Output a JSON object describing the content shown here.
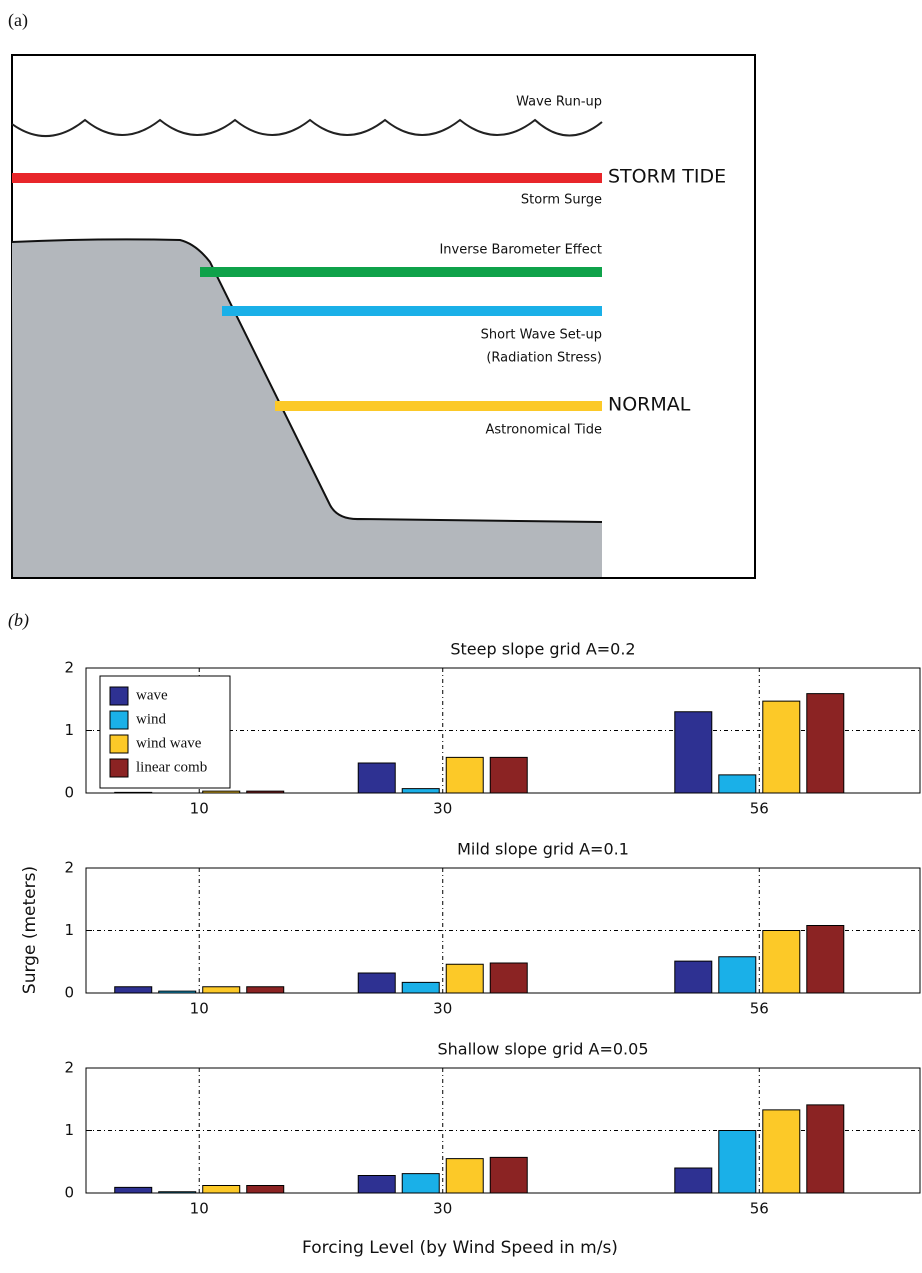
{
  "panel_a": {
    "label": "(a)",
    "labels": {
      "wave_runup": "Wave Run-up",
      "storm_tide": "STORM TIDE",
      "storm_surge": "Storm Surge",
      "inverse_barometer": "Inverse Barometer Effect",
      "short_wave_setup": "Short Wave Set-up",
      "radiation_stress": "(Radiation Stress)",
      "normal": "NORMAL",
      "astronomical_tide": "Astronomical Tide"
    }
  },
  "panel_b_label": "(b)",
  "ylabel": "Surge (meters)",
  "xlabel": "Forcing Level (by Wind Speed in m/s)",
  "chart_data": [
    {
      "type": "bar",
      "title": "Steep slope grid A=0.2",
      "x": [
        10,
        30,
        56
      ],
      "xlim": [
        0.7,
        69.2
      ],
      "xticks": [
        10,
        30,
        56
      ],
      "ylim": [
        0,
        2
      ],
      "yticks": [
        0,
        1,
        2
      ],
      "grid": true,
      "legend": "upper left",
      "series": [
        {
          "name": "wave",
          "color": "#2e3192",
          "values": [
            0.01,
            0.48,
            1.3
          ]
        },
        {
          "name": "wind",
          "color": "#1ab0e8",
          "values": [
            0,
            0.07,
            0.29
          ]
        },
        {
          "name": "wind wave",
          "color": "#fcc928",
          "values": [
            0.03,
            0.57,
            1.47
          ]
        },
        {
          "name": "linear comb",
          "color": "#8b2323",
          "values": [
            0.03,
            0.57,
            1.59
          ]
        }
      ]
    },
    {
      "type": "bar",
      "title": "Mild slope grid A=0.1",
      "x": [
        10,
        30,
        56
      ],
      "xlim": [
        0.7,
        69.2
      ],
      "xticks": [
        10,
        30,
        56
      ],
      "ylim": [
        0,
        2
      ],
      "yticks": [
        0,
        1,
        2
      ],
      "grid": true,
      "series": [
        {
          "color": "#2e3192",
          "values": [
            0.1,
            0.32,
            0.51
          ]
        },
        {
          "color": "#1ab0e8",
          "values": [
            0.03,
            0.17,
            0.58
          ]
        },
        {
          "color": "#fcc928",
          "values": [
            0.1,
            0.46,
            1.0
          ]
        },
        {
          "color": "#8b2323",
          "values": [
            0.1,
            0.48,
            1.08
          ]
        }
      ]
    },
    {
      "type": "bar",
      "title": "Shallow slope grid A=0.05",
      "x": [
        10,
        30,
        56
      ],
      "xlim": [
        0.7,
        69.2
      ],
      "xticks": [
        10,
        30,
        56
      ],
      "ylim": [
        0,
        2
      ],
      "yticks": [
        0,
        1,
        2
      ],
      "grid": true,
      "series": [
        {
          "color": "#2e3192",
          "values": [
            0.09,
            0.28,
            0.4
          ]
        },
        {
          "color": "#1ab0e8",
          "values": [
            0.02,
            0.31,
            1.0
          ]
        },
        {
          "color": "#fcc928",
          "values": [
            0.12,
            0.55,
            1.33
          ]
        },
        {
          "color": "#8b2323",
          "values": [
            0.12,
            0.57,
            1.41
          ]
        }
      ]
    }
  ]
}
